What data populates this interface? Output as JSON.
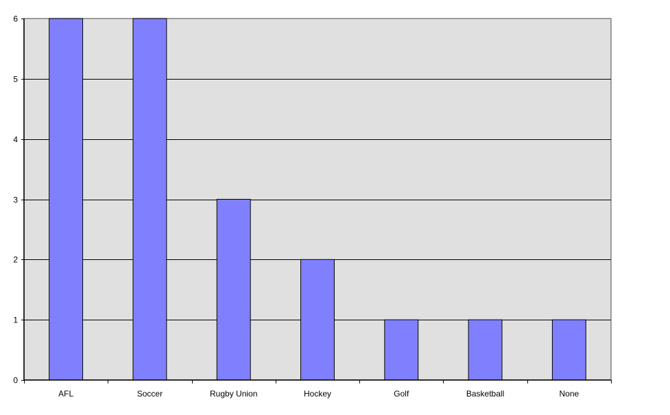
{
  "chart_data": {
    "type": "bar",
    "title": "",
    "xlabel": "",
    "ylabel": "",
    "categories": [
      "AFL",
      "Soccer",
      "Rugby Union",
      "Hockey",
      "Golf",
      "Basketball",
      "None"
    ],
    "values": [
      6,
      6,
      3,
      2,
      1,
      1,
      1
    ],
    "ylim": [
      0,
      6
    ],
    "yticks": [
      0,
      1,
      2,
      3,
      4,
      5,
      6
    ],
    "grid": true,
    "legend": "none",
    "colors": {
      "bar": "#8080ff",
      "plot_background": "#e0e0e0",
      "gridline": "#000000",
      "plot_border": "#808080"
    }
  }
}
